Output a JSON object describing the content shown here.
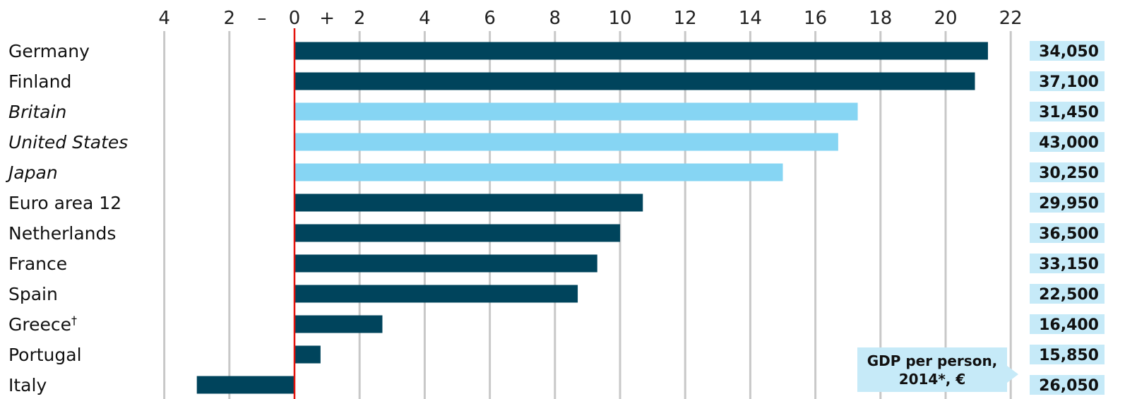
{
  "chart_data": {
    "type": "bar",
    "orientation": "horizontal",
    "categories": [
      "Germany",
      "Finland",
      "Britain",
      "United States",
      "Japan",
      "Euro area 12",
      "Netherlands",
      "France",
      "Spain",
      "Greece",
      "Portugal",
      "Italy"
    ],
    "category_superscripts": [
      "",
      "",
      "",
      "",
      "",
      "",
      "",
      "",
      "",
      "†",
      "",
      ""
    ],
    "italic_categories": [
      "Britain",
      "United States",
      "Japan"
    ],
    "values": [
      21.3,
      20.9,
      17.3,
      16.7,
      15.0,
      10.7,
      10.0,
      9.3,
      8.7,
      2.7,
      0.8,
      -3.0
    ],
    "gdp_per_person": [
      "34,050",
      "37,100",
      "31,450",
      "43,000",
      "30,250",
      "29,950",
      "36,500",
      "33,150",
      "22,500",
      "16,400",
      "15,850",
      "26,050"
    ],
    "gdp_callout_line1": "GDP per person,",
    "gdp_callout_line2": "2014*, €",
    "xlim": [
      -4,
      22
    ],
    "x_ticks": [
      -4,
      -2,
      0,
      2,
      4,
      6,
      8,
      10,
      12,
      14,
      16,
      18,
      20,
      22
    ],
    "x_tick_labels": [
      "4",
      "2",
      "0",
      "2",
      "4",
      "6",
      "8",
      "10",
      "12",
      "14",
      "16",
      "18",
      "20",
      "22"
    ],
    "minus_sign": "–",
    "plus_sign": "+",
    "grid": true,
    "colors": {
      "eurozone": "#00445c",
      "non_eurozone": "#86d5f3",
      "zero_line": "#e3120b",
      "grid": "#c8c8c8",
      "gdp_box": "#c6eaf8"
    }
  }
}
